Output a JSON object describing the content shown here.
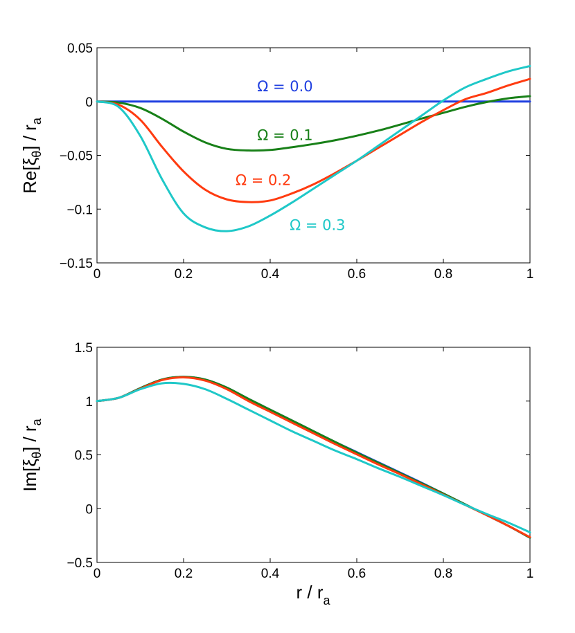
{
  "chart_data": [
    {
      "type": "line",
      "title": "",
      "xlabel": "r / r",
      "xlabel_sub": "a",
      "ylabel_prefix": "Re[ξ",
      "ylabel_sub": "θ",
      "ylabel_suffix": "] / r",
      "ylabel_sub2": "a",
      "xlim": [
        0,
        1
      ],
      "ylim": [
        -0.15,
        0.05
      ],
      "xticks": [
        0,
        0.2,
        0.4,
        0.6,
        0.8,
        1
      ],
      "xtick_labels": [
        "0",
        "0.2",
        "0.4",
        "0.6",
        "0.8",
        "1"
      ],
      "yticks": [
        0.05,
        0,
        -0.05,
        -0.1,
        -0.15
      ],
      "ytick_labels": [
        "0.05",
        "0",
        "−0.05",
        "−0.1",
        "−0.15"
      ],
      "x": [
        0,
        0.05,
        0.1,
        0.15,
        0.2,
        0.25,
        0.3,
        0.35,
        0.4,
        0.45,
        0.5,
        0.55,
        0.6,
        0.65,
        0.7,
        0.75,
        0.8,
        0.85,
        0.9,
        0.95,
        1
      ],
      "series": [
        {
          "name": "Ω = 0.0",
          "color": "#1f3fe0",
          "values": [
            0,
            0,
            0,
            0,
            0,
            0,
            0,
            0,
            0,
            0,
            0,
            0,
            0,
            0,
            0,
            0,
            0,
            0,
            0,
            0,
            0
          ]
        },
        {
          "name": "Ω = 0.1",
          "color": "#188018",
          "values": [
            0,
            -0.001,
            -0.006,
            -0.016,
            -0.028,
            -0.038,
            -0.044,
            -0.0455,
            -0.045,
            -0.0425,
            -0.0395,
            -0.036,
            -0.0318,
            -0.027,
            -0.0215,
            -0.0158,
            -0.0105,
            -0.005,
            -0.0005,
            0.003,
            0.005
          ]
        },
        {
          "name": "Ω = 0.2",
          "color": "#ff3b10",
          "values": [
            0,
            -0.003,
            -0.017,
            -0.042,
            -0.065,
            -0.082,
            -0.091,
            -0.0935,
            -0.092,
            -0.0855,
            -0.077,
            -0.0665,
            -0.055,
            -0.043,
            -0.031,
            -0.019,
            -0.008,
            0.002,
            0.008,
            0.015,
            0.021
          ]
        },
        {
          "name": "Ω = 0.3",
          "color": "#1fc8c8",
          "values": [
            0,
            -0.005,
            -0.032,
            -0.072,
            -0.104,
            -0.117,
            -0.1205,
            -0.116,
            -0.106,
            -0.094,
            -0.081,
            -0.068,
            -0.055,
            -0.041,
            -0.027,
            -0.013,
            0.001,
            0.013,
            0.021,
            0.028,
            0.033
          ]
        }
      ],
      "annotations": [
        {
          "text": "Ω = 0.0",
          "x": 0.37,
          "y": 0.0095,
          "color": "#1f3fe0"
        },
        {
          "text": "Ω = 0.1",
          "x": 0.37,
          "y": -0.036,
          "color": "#188018"
        },
        {
          "text": "Ω = 0.2",
          "x": 0.32,
          "y": -0.0775,
          "color": "#ff3b10"
        },
        {
          "text": "Ω = 0.3",
          "x": 0.445,
          "y": -0.1195,
          "color": "#1fc8c8"
        }
      ]
    },
    {
      "type": "line",
      "title": "",
      "xlabel": "r / r",
      "xlabel_sub": "a",
      "ylabel_prefix": "Im[ξ",
      "ylabel_sub": "θ",
      "ylabel_suffix": "] / r",
      "ylabel_sub2": "a",
      "xlim": [
        0,
        1
      ],
      "ylim": [
        -0.5,
        1.5
      ],
      "xticks": [
        0,
        0.2,
        0.4,
        0.6,
        0.8,
        1
      ],
      "xtick_labels": [
        "0",
        "0.2",
        "0.4",
        "0.6",
        "0.8",
        "1"
      ],
      "yticks": [
        1.5,
        1,
        0.5,
        0,
        -0.5
      ],
      "ytick_labels": [
        "1.5",
        "1",
        "0.5",
        "0",
        "−0.5"
      ],
      "x": [
        0,
        0.05,
        0.1,
        0.15,
        0.2,
        0.25,
        0.3,
        0.35,
        0.4,
        0.45,
        0.5,
        0.55,
        0.6,
        0.65,
        0.7,
        0.75,
        0.8,
        0.85,
        0.9,
        0.95,
        1
      ],
      "series": [
        {
          "name": "Ω = 0.0",
          "color": "#1f3fe0",
          "values": [
            1.0,
            1.03,
            1.12,
            1.2,
            1.225,
            1.2,
            1.125,
            1.02,
            0.92,
            0.82,
            0.72,
            0.62,
            0.525,
            0.43,
            0.335,
            0.24,
            0.14,
            0.04,
            -0.06,
            -0.16,
            -0.27
          ]
        },
        {
          "name": "Ω = 0.1",
          "color": "#188018",
          "values": [
            1.0,
            1.03,
            1.12,
            1.2,
            1.225,
            1.2,
            1.125,
            1.02,
            0.92,
            0.82,
            0.72,
            0.62,
            0.52,
            0.425,
            0.33,
            0.235,
            0.14,
            0.04,
            -0.06,
            -0.16,
            -0.27
          ]
        },
        {
          "name": "Ω = 0.2",
          "color": "#ff3b10",
          "values": [
            1.0,
            1.03,
            1.115,
            1.195,
            1.22,
            1.19,
            1.11,
            1.0,
            0.9,
            0.8,
            0.7,
            0.6,
            0.505,
            0.41,
            0.32,
            0.225,
            0.13,
            0.035,
            -0.06,
            -0.16,
            -0.265
          ]
        },
        {
          "name": "Ω = 0.3",
          "color": "#1fc8c8",
          "values": [
            1.0,
            1.03,
            1.11,
            1.165,
            1.16,
            1.11,
            1.02,
            0.92,
            0.82,
            0.72,
            0.63,
            0.54,
            0.46,
            0.375,
            0.295,
            0.21,
            0.125,
            0.035,
            -0.05,
            -0.13,
            -0.22
          ]
        }
      ],
      "annotations": []
    }
  ]
}
